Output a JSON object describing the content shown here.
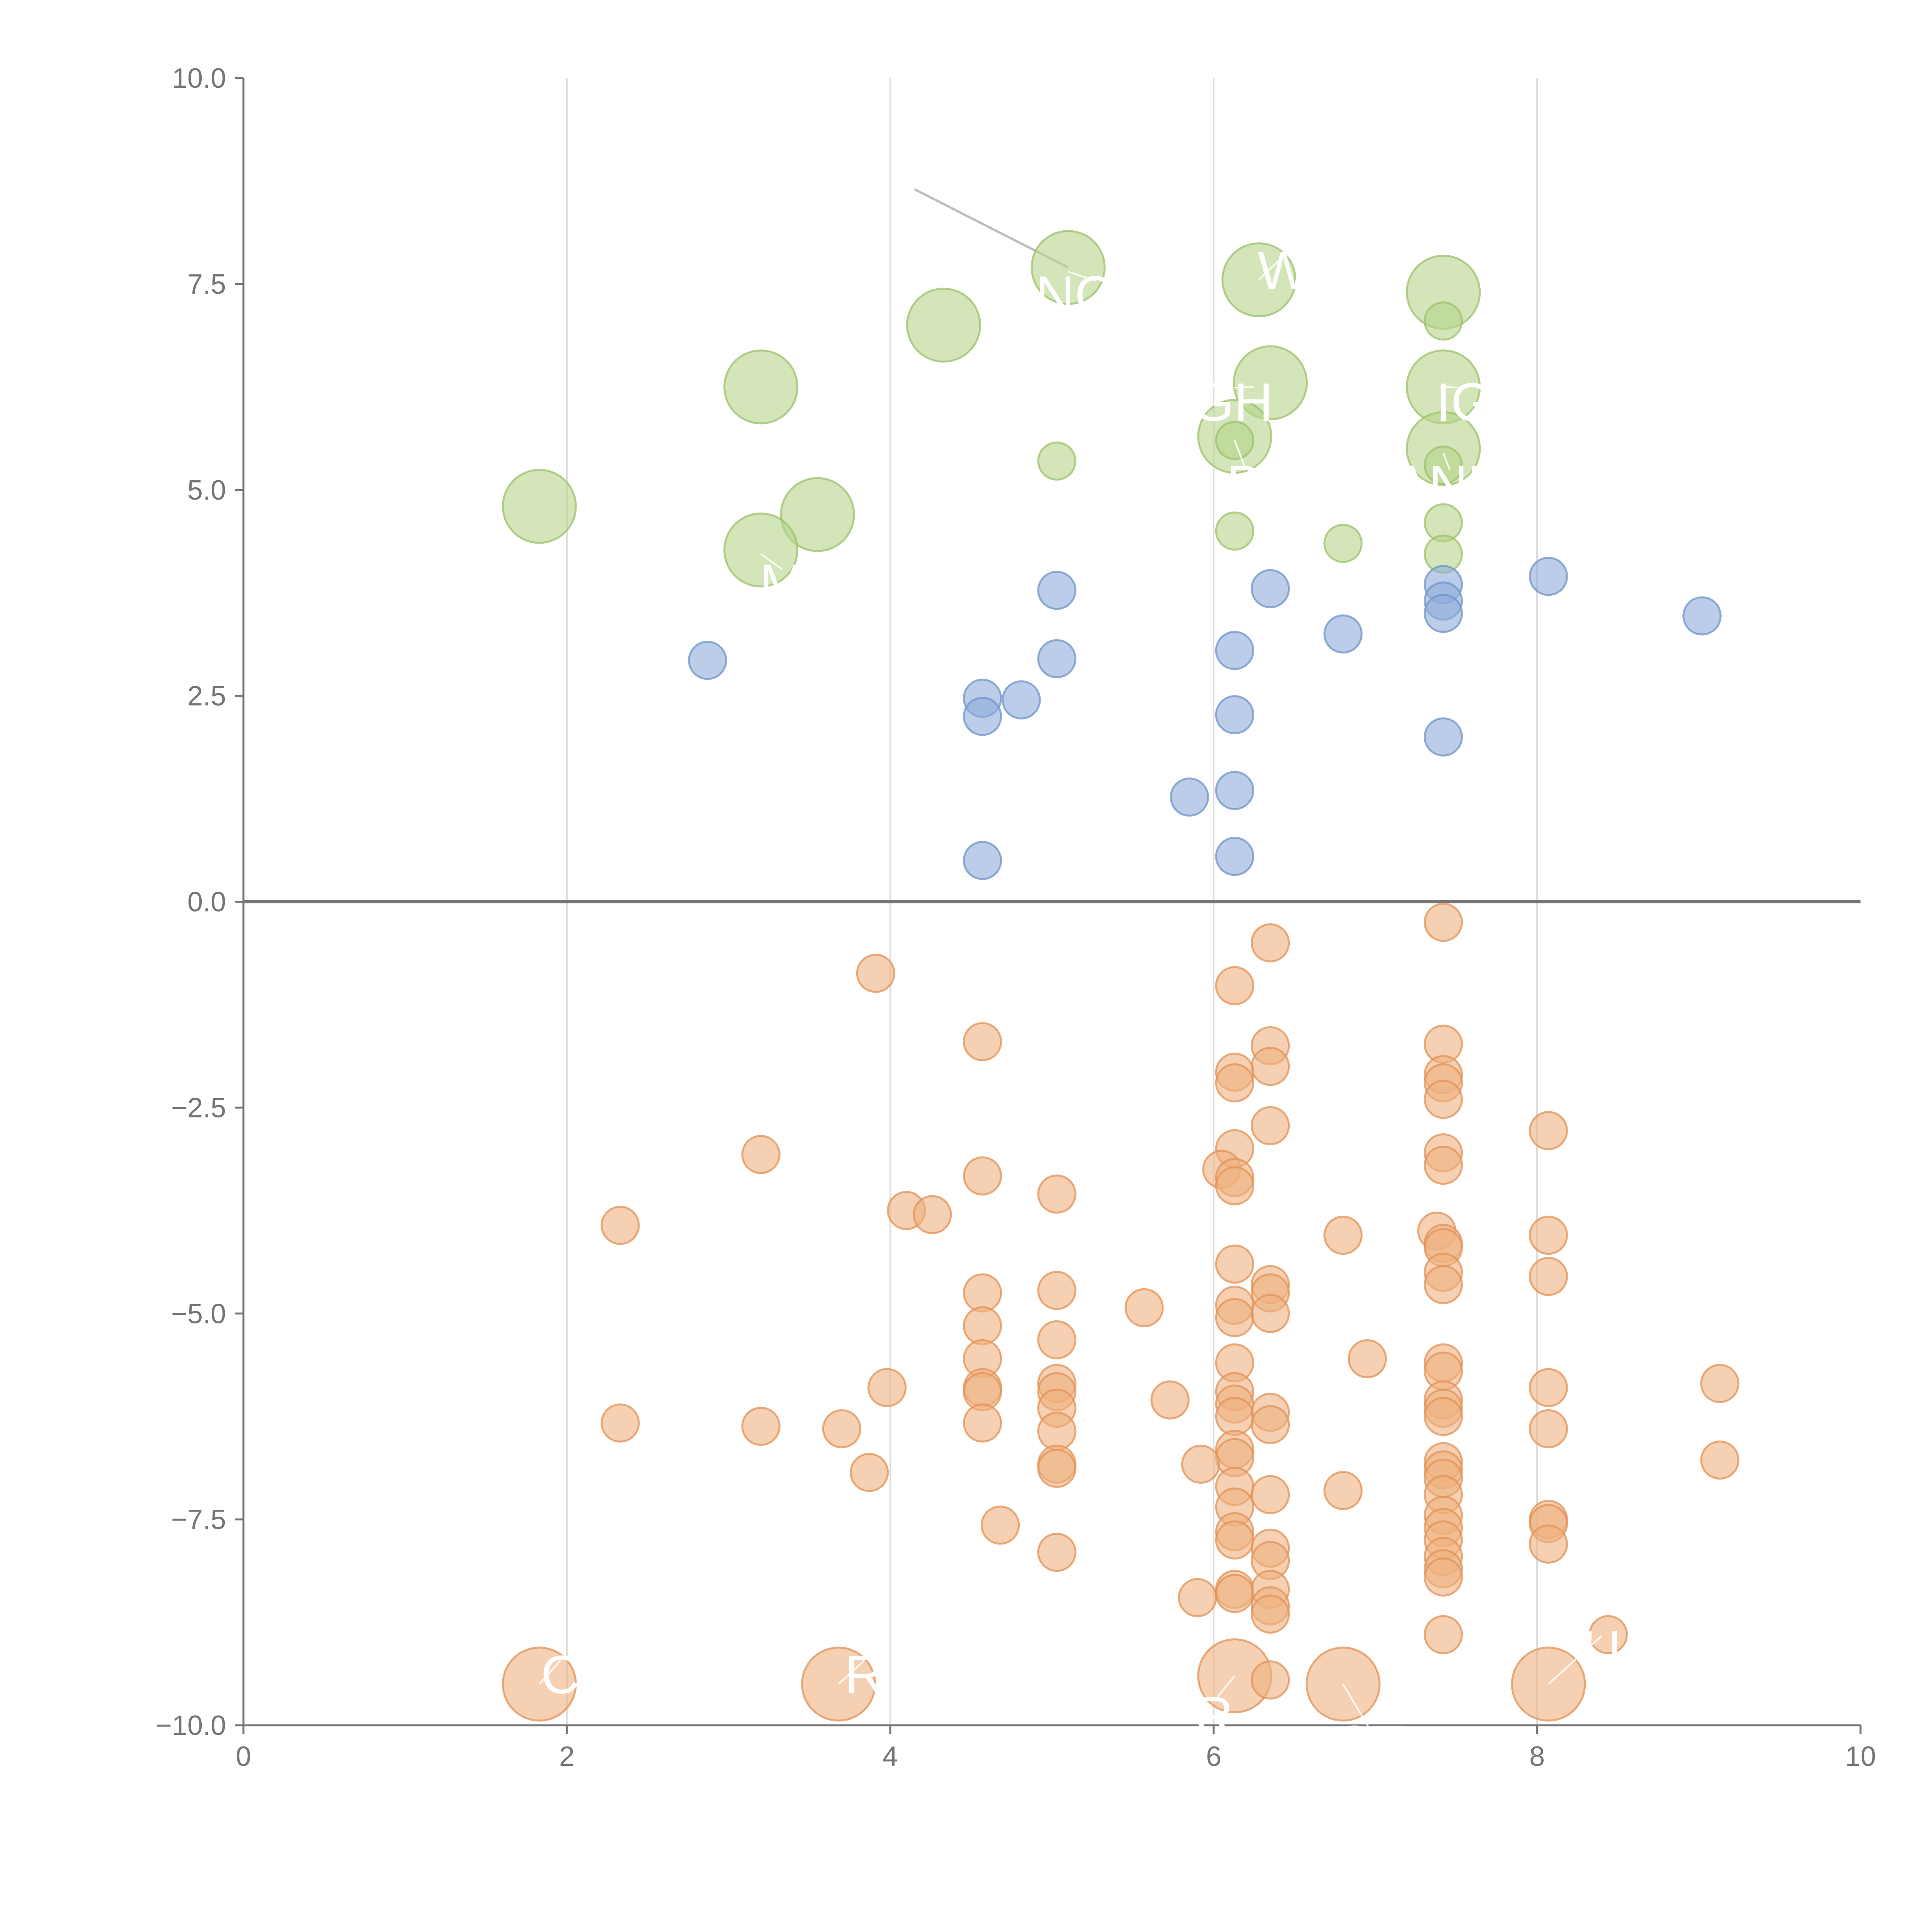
{
  "chart_data": {
    "type": "scatter",
    "title": "",
    "xlabel": "",
    "ylabel": "",
    "xlim": [
      0,
      10
    ],
    "ylim": [
      -10,
      10
    ],
    "x_ticks": [
      "0",
      "2",
      "4",
      "6",
      "8",
      "10"
    ],
    "y_ticks": [
      "−10.0",
      "−7.5",
      "−5.0",
      "−2.5",
      "0.0",
      "2.5",
      "5.0",
      "7.5",
      "10.0"
    ],
    "grid": "vertical",
    "zero_line": true,
    "legend": "none",
    "colors": {
      "green": "#b5d38a",
      "green_stroke": "#9bc06b",
      "blue": "#8eacd8",
      "blue_stroke": "#6f93c9",
      "orange": "#eeb07e",
      "orange_stroke": "#e29256",
      "axis": "#757575",
      "grid": "#dddddd",
      "label": "#ffffff"
    },
    "series": [
      {
        "color": "green",
        "points": [
          [
            5.1,
            7.7,
            2
          ],
          [
            6.28,
            7.55,
            2
          ],
          [
            7.42,
            7.4,
            2
          ],
          [
            4.33,
            7.0,
            2
          ],
          [
            7.42,
            7.05,
            0
          ],
          [
            3.2,
            6.25,
            2
          ],
          [
            6.35,
            6.3,
            2
          ],
          [
            7.42,
            6.25,
            2
          ],
          [
            6.13,
            5.65,
            2
          ],
          [
            6.13,
            5.6,
            0
          ],
          [
            7.42,
            5.5,
            2
          ],
          [
            7.42,
            5.3,
            0
          ],
          [
            5.03,
            5.35,
            0
          ],
          [
            1.83,
            4.8,
            2
          ],
          [
            3.55,
            4.7,
            2
          ],
          [
            3.2,
            4.27,
            2
          ],
          [
            6.13,
            4.5,
            0
          ],
          [
            6.8,
            4.35,
            0
          ],
          [
            7.42,
            4.6,
            0
          ],
          [
            7.42,
            4.22,
            0
          ]
        ]
      },
      {
        "color": "blue",
        "points": [
          [
            8.07,
            3.95,
            0
          ],
          [
            5.03,
            3.78,
            0
          ],
          [
            6.35,
            3.8,
            0
          ],
          [
            7.42,
            3.85,
            0
          ],
          [
            7.42,
            3.65,
            0
          ],
          [
            7.42,
            3.5,
            0
          ],
          [
            9.02,
            3.47,
            0
          ],
          [
            6.8,
            3.25,
            0
          ],
          [
            6.13,
            3.05,
            0
          ],
          [
            2.87,
            2.93,
            0
          ],
          [
            5.03,
            2.95,
            0
          ],
          [
            4.57,
            2.47,
            0
          ],
          [
            4.57,
            2.25,
            0
          ],
          [
            4.81,
            2.45,
            0
          ],
          [
            6.13,
            2.27,
            0
          ],
          [
            7.42,
            2.0,
            0
          ],
          [
            5.85,
            1.27,
            0
          ],
          [
            6.13,
            1.35,
            0
          ],
          [
            6.13,
            0.55,
            0
          ],
          [
            4.57,
            0.5,
            0
          ]
        ]
      },
      {
        "color": "orange",
        "points": [
          [
            1.83,
            -9.5,
            2
          ],
          [
            3.68,
            -9.5,
            2
          ],
          [
            6.13,
            -9.4,
            2
          ],
          [
            6.8,
            -9.5,
            2
          ],
          [
            8.07,
            -9.5,
            2
          ],
          [
            3.91,
            -0.87,
            0
          ],
          [
            6.35,
            -0.5,
            0
          ],
          [
            7.42,
            -0.25,
            0
          ],
          [
            6.13,
            -1.02,
            0
          ],
          [
            4.57,
            -1.7,
            0
          ],
          [
            6.35,
            -1.75,
            0
          ],
          [
            6.35,
            -2.0,
            0
          ],
          [
            7.42,
            -1.73,
            0
          ],
          [
            6.13,
            -2.07,
            0
          ],
          [
            6.13,
            -2.2,
            0
          ],
          [
            7.42,
            -2.1,
            0
          ],
          [
            7.42,
            -2.2,
            0
          ],
          [
            7.42,
            -2.4,
            0
          ],
          [
            6.35,
            -2.72,
            0
          ],
          [
            8.07,
            -2.78,
            0
          ],
          [
            3.2,
            -3.07,
            0
          ],
          [
            6.13,
            -3.0,
            0
          ],
          [
            6.05,
            -3.25,
            0
          ],
          [
            6.13,
            -3.35,
            0
          ],
          [
            6.13,
            -3.45,
            0
          ],
          [
            7.42,
            -3.05,
            0
          ],
          [
            7.42,
            -3.2,
            0
          ],
          [
            4.57,
            -3.33,
            0
          ],
          [
            5.03,
            -3.55,
            0
          ],
          [
            2.33,
            -3.93,
            0
          ],
          [
            4.1,
            -3.75,
            0
          ],
          [
            4.26,
            -3.8,
            0
          ],
          [
            6.8,
            -4.05,
            0
          ],
          [
            7.38,
            -4.0,
            0
          ],
          [
            7.42,
            -4.15,
            0
          ],
          [
            7.42,
            -4.2,
            0
          ],
          [
            8.07,
            -4.05,
            0
          ],
          [
            6.13,
            -4.4,
            0
          ],
          [
            7.42,
            -4.5,
            0
          ],
          [
            7.42,
            -4.65,
            0
          ],
          [
            8.07,
            -4.55,
            0
          ],
          [
            6.35,
            -4.65,
            0
          ],
          [
            6.35,
            -4.75,
            0
          ],
          [
            4.57,
            -4.75,
            0
          ],
          [
            5.03,
            -4.72,
            0
          ],
          [
            5.57,
            -4.93,
            0
          ],
          [
            6.13,
            -4.9,
            0
          ],
          [
            6.13,
            -5.05,
            0
          ],
          [
            6.35,
            -5.0,
            0
          ],
          [
            4.57,
            -5.15,
            0
          ],
          [
            5.03,
            -5.32,
            0
          ],
          [
            6.95,
            -5.55,
            0
          ],
          [
            4.57,
            -5.55,
            0
          ],
          [
            6.13,
            -5.6,
            0
          ],
          [
            7.42,
            -5.6,
            0
          ],
          [
            7.42,
            -5.7,
            0
          ],
          [
            5.03,
            -5.85,
            0
          ],
          [
            5.03,
            -5.95,
            0
          ],
          [
            4.57,
            -5.9,
            0
          ],
          [
            4.57,
            -5.95,
            0
          ],
          [
            3.98,
            -5.9,
            0
          ],
          [
            9.13,
            -5.85,
            0
          ],
          [
            8.07,
            -5.9,
            0
          ],
          [
            6.13,
            -5.95,
            0
          ],
          [
            6.13,
            -6.1,
            0
          ],
          [
            6.13,
            -6.25,
            0
          ],
          [
            7.42,
            -6.05,
            0
          ],
          [
            7.42,
            -6.15,
            0
          ],
          [
            7.42,
            -6.25,
            0
          ],
          [
            5.73,
            -6.05,
            0
          ],
          [
            5.03,
            -6.15,
            0
          ],
          [
            6.35,
            -6.2,
            0
          ],
          [
            6.35,
            -6.35,
            0
          ],
          [
            2.33,
            -6.33,
            0
          ],
          [
            3.2,
            -6.37,
            0
          ],
          [
            3.7,
            -6.4,
            0
          ],
          [
            4.57,
            -6.33,
            0
          ],
          [
            5.03,
            -6.43,
            0
          ],
          [
            8.07,
            -6.4,
            0
          ],
          [
            6.13,
            -6.65,
            0
          ],
          [
            6.13,
            -6.75,
            0
          ],
          [
            9.13,
            -6.78,
            0
          ],
          [
            7.42,
            -6.8,
            0
          ],
          [
            7.42,
            -6.9,
            0
          ],
          [
            7.42,
            -7.0,
            0
          ],
          [
            5.03,
            -6.83,
            0
          ],
          [
            5.03,
            -6.88,
            0
          ],
          [
            5.92,
            -6.83,
            0
          ],
          [
            3.87,
            -6.93,
            0
          ],
          [
            6.13,
            -7.1,
            0
          ],
          [
            6.8,
            -7.15,
            0
          ],
          [
            6.35,
            -7.2,
            0
          ],
          [
            7.42,
            -7.2,
            0
          ],
          [
            4.68,
            -7.57,
            0
          ],
          [
            6.13,
            -7.35,
            0
          ],
          [
            7.42,
            -7.45,
            0
          ],
          [
            7.42,
            -7.6,
            0
          ],
          [
            8.07,
            -7.5,
            0
          ],
          [
            8.07,
            -7.55,
            0
          ],
          [
            6.13,
            -7.65,
            0
          ],
          [
            6.13,
            -7.75,
            0
          ],
          [
            7.42,
            -7.75,
            0
          ],
          [
            7.42,
            -7.95,
            0
          ],
          [
            8.07,
            -7.8,
            0
          ],
          [
            6.35,
            -7.85,
            0
          ],
          [
            6.35,
            -8.0,
            0
          ],
          [
            5.03,
            -7.9,
            0
          ],
          [
            7.42,
            -8.1,
            0
          ],
          [
            7.42,
            -8.2,
            0
          ],
          [
            6.13,
            -8.35,
            0
          ],
          [
            6.13,
            -8.4,
            0
          ],
          [
            5.9,
            -8.45,
            0
          ],
          [
            6.35,
            -8.35,
            0
          ],
          [
            6.35,
            -8.55,
            0
          ],
          [
            6.35,
            -8.65,
            0
          ],
          [
            7.42,
            -8.9,
            0
          ],
          [
            8.44,
            -8.9,
            0
          ],
          [
            6.35,
            -9.45,
            0
          ]
        ]
      }
    ],
    "labels": [
      {
        "text": "NCO",
        "x": 5.27,
        "y": 7.35,
        "ax": 5.1,
        "ay": 7.65
      },
      {
        "text": "W",
        "x": 6.43,
        "y": 7.65,
        "ax": 6.28,
        "ay": 7.55
      },
      {
        "text": "IGH",
        "x": 6.07,
        "y": 6.05,
        "ax": 6.25,
        "ay": 6.25
      },
      {
        "text": "IG",
        "x": 7.55,
        "y": 6.05,
        "ax": 7.42,
        "ay": 6.25
      },
      {
        "text": "D",
        "x": 6.2,
        "y": 5.05,
        "ax": 6.13,
        "ay": 5.6
      },
      {
        "text": "ANU",
        "x": 7.46,
        "y": 5.05,
        "ax": 7.42,
        "ay": 5.45
      },
      {
        "text": "M",
        "x": 3.33,
        "y": 3.85,
        "ax": 3.2,
        "ay": 4.22
      },
      {
        "text": "R",
        "x": 6.0,
        "y": -9.9,
        "ax": 6.13,
        "ay": -9.4
      },
      {
        "text": "ST",
        "x": 6.97,
        "y": -10.25,
        "ax": 6.8,
        "ay": -9.5
      },
      {
        "text": "C",
        "x": 1.96,
        "y": -9.4,
        "ax": 1.83,
        "ay": -9.5
      },
      {
        "text": "R",
        "x": 3.84,
        "y": -9.4,
        "ax": 3.68,
        "ay": -9.5
      },
      {
        "text": "U",
        "x": 8.4,
        "y": -9.1,
        "ax": 8.07,
        "ay": -9.5
      }
    ],
    "leader_lines": [
      {
        "x1": 4.15,
        "y1": 8.65,
        "x2": 5.1,
        "y2": 7.7
      }
    ]
  }
}
